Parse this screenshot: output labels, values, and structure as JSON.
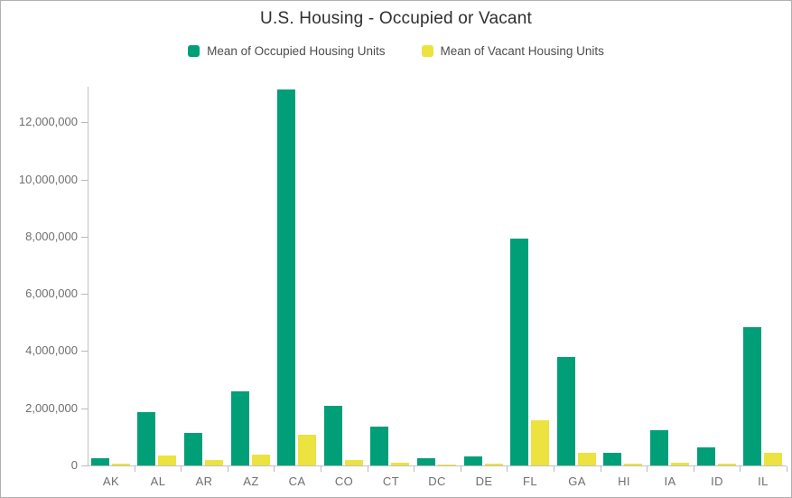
{
  "chart_data": {
    "type": "bar",
    "title": "U.S. Housing - Occupied or Vacant",
    "categories": [
      "AK",
      "AL",
      "AR",
      "AZ",
      "CA",
      "CO",
      "CT",
      "DC",
      "DE",
      "FL",
      "GA",
      "HI",
      "IA",
      "ID",
      "IL"
    ],
    "series": [
      {
        "name": "Mean of Occupied Housing Units",
        "color": "#009f78",
        "values": [
          240000,
          1880000,
          1130000,
          2590000,
          13130000,
          2100000,
          1360000,
          250000,
          330000,
          7920000,
          3800000,
          430000,
          1230000,
          620000,
          4840000
        ]
      },
      {
        "name": "Mean of Vacant Housing Units",
        "color": "#ece240",
        "values": [
          50000,
          340000,
          180000,
          370000,
          1070000,
          200000,
          100000,
          30000,
          50000,
          1590000,
          440000,
          55000,
          110000,
          70000,
          450000
        ]
      }
    ],
    "xlabel": "",
    "ylabel": "",
    "ylim": [
      0,
      13240000
    ],
    "yticks": [
      0,
      2000000,
      4000000,
      6000000,
      8000000,
      10000000,
      12000000
    ],
    "ytick_labels": [
      "0",
      "2,000,000",
      "4,000,000",
      "6,000,000",
      "8,000,000",
      "10,000,000",
      "12,000,000"
    ],
    "grid": false,
    "legend_position": "top"
  }
}
